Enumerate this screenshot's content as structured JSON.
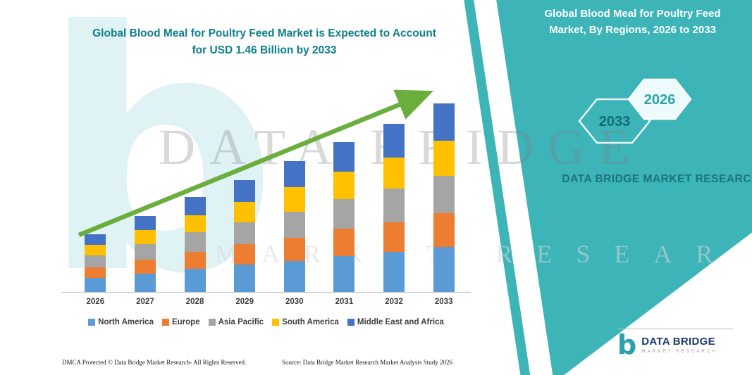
{
  "header": {
    "chart_title": "Global Blood Meal for Poultry Feed Market is Expected to Account for USD 1.46 Billion by 2033"
  },
  "panel": {
    "title": "Global Blood Meal for Poultry Feed Market, By Regions, 2026 to 2033",
    "hexagon_back": "2033",
    "hexagon_front": "2026",
    "brand_text": "DATA BRIDGE MARKET RESEARCH",
    "accent_color": "#3cb4b8"
  },
  "watermark": {
    "letter": "b",
    "line1": "DATA BRIDGE",
    "line2": "MARKET RESEARCH"
  },
  "footer": {
    "dmca": "DMCA Protected © Data Bridge Market Research-  All Rights Reserved.",
    "source": "Source: Data Bridge Market Research  Market Analysis Study 2026"
  },
  "logo": {
    "letter": "b",
    "name": "DATA BRIDGE",
    "sub": "MARKET RESEARCH"
  },
  "chart_data": {
    "type": "bar",
    "stacked": true,
    "title": "Global Blood Meal for Poultry Feed Market is Expected to Account for USD 1.46 Billion by 2033",
    "unit": "USD Billion",
    "categories": [
      "2026",
      "2027",
      "2028",
      "2029",
      "2030",
      "2031",
      "2032",
      "2033"
    ],
    "series": [
      {
        "name": "North America",
        "color": "#5B9BD5",
        "values": [
          0.11,
          0.14,
          0.18,
          0.21,
          0.24,
          0.28,
          0.31,
          0.35
        ]
      },
      {
        "name": "Europe",
        "color": "#ED7D31",
        "values": [
          0.08,
          0.11,
          0.13,
          0.16,
          0.18,
          0.21,
          0.23,
          0.26
        ]
      },
      {
        "name": "Asia Pacific",
        "color": "#A5A5A5",
        "values": [
          0.09,
          0.12,
          0.15,
          0.17,
          0.2,
          0.23,
          0.26,
          0.29
        ]
      },
      {
        "name": "South America",
        "color": "#FFC000",
        "values": [
          0.08,
          0.11,
          0.13,
          0.16,
          0.19,
          0.21,
          0.24,
          0.27
        ]
      },
      {
        "name": "Middle East and Africa",
        "color": "#4472C4",
        "values": [
          0.08,
          0.11,
          0.14,
          0.17,
          0.2,
          0.23,
          0.26,
          0.29
        ]
      }
    ],
    "totals": [
      0.44,
      0.59,
      0.73,
      0.87,
      1.01,
      1.16,
      1.3,
      1.46
    ],
    "ylim": [
      0,
      1.5
    ],
    "grid": false,
    "legend_position": "bottom",
    "annotations": [
      "green upward trend arrow from 2026 to 2033"
    ]
  }
}
